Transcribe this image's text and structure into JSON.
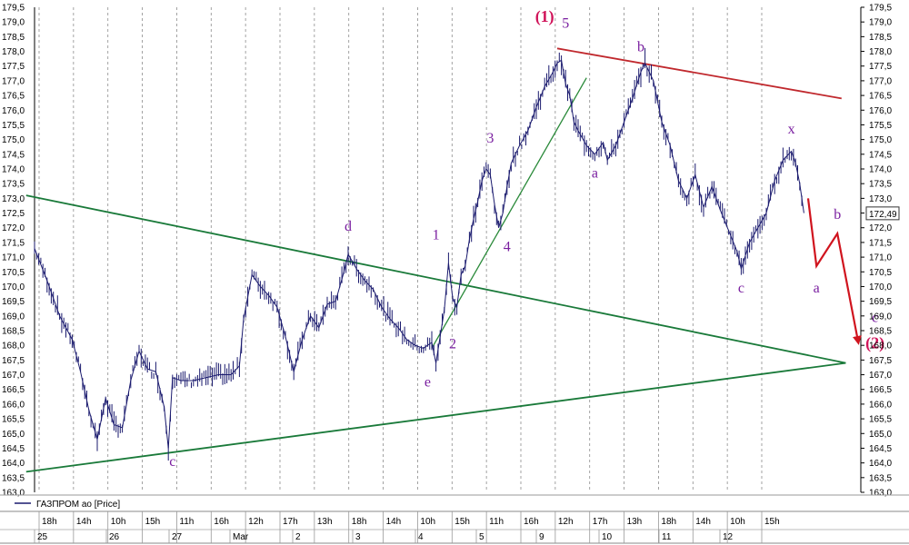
{
  "chart_data": {
    "type": "line",
    "series_name": "ГАЗПРОМ ао [Price]",
    "last_price_label": "172,49",
    "y_range": [
      163.0,
      179.5
    ],
    "y_ticks": [
      "163,0",
      "163,5",
      "164,0",
      "164,5",
      "165,0",
      "165,5",
      "166,0",
      "166,5",
      "167,0",
      "167,5",
      "168,0",
      "168,5",
      "169,0",
      "169,5",
      "170,0",
      "170,5",
      "171,0",
      "171,5",
      "172,0",
      "172,5",
      "173,0",
      "173,5",
      "174,0",
      "174,5",
      "175,0",
      "175,5",
      "176,0",
      "176,5",
      "177,0",
      "177,5",
      "178,0",
      "178,5",
      "179,0",
      "179,5"
    ],
    "x_hours": [
      "18h",
      "14h",
      "10h",
      "15h",
      "11h",
      "16h",
      "12h",
      "17h",
      "13h",
      "18h",
      "14h",
      "10h",
      "15h",
      "11h",
      "16h",
      "12h",
      "17h",
      "13h",
      "18h",
      "14h",
      "10h",
      "15h"
    ],
    "x_days": [
      "25",
      "26",
      "27",
      "Mar",
      "2",
      "3",
      "4",
      "5",
      "9",
      "10",
      "11",
      "12"
    ],
    "price_path": [
      [
        0,
        171.3
      ],
      [
        6,
        170.2
      ],
      [
        12,
        169.0
      ],
      [
        18,
        168.2
      ],
      [
        22,
        167.1
      ],
      [
        26,
        165.8
      ],
      [
        30,
        164.8
      ],
      [
        34,
        166.2
      ],
      [
        38,
        165.3
      ],
      [
        42,
        165.2
      ],
      [
        46,
        166.8
      ],
      [
        50,
        167.8
      ],
      [
        54,
        167.2
      ],
      [
        58,
        167.1
      ],
      [
        62,
        165.9
      ],
      [
        64,
        164.5
      ],
      [
        66,
        166.9
      ],
      [
        70,
        166.8
      ],
      [
        76,
        166.8
      ],
      [
        82,
        166.9
      ],
      [
        88,
        167.0
      ],
      [
        94,
        167.0
      ],
      [
        98,
        167.3
      ],
      [
        100,
        168.9
      ],
      [
        104,
        170.4
      ],
      [
        108,
        170.0
      ],
      [
        112,
        169.7
      ],
      [
        116,
        169.3
      ],
      [
        120,
        168.3
      ],
      [
        124,
        167.1
      ],
      [
        128,
        168.2
      ],
      [
        132,
        169.0
      ],
      [
        136,
        168.6
      ],
      [
        140,
        169.4
      ],
      [
        144,
        169.5
      ],
      [
        148,
        170.5
      ],
      [
        150,
        171.1
      ],
      [
        154,
        170.6
      ],
      [
        158,
        170.2
      ],
      [
        162,
        169.9
      ],
      [
        166,
        169.3
      ],
      [
        170,
        168.9
      ],
      [
        174,
        168.6
      ],
      [
        178,
        168.2
      ],
      [
        182,
        168.0
      ],
      [
        186,
        167.9
      ],
      [
        190,
        168.1
      ],
      [
        192,
        167.4
      ],
      [
        194,
        168.3
      ],
      [
        196,
        169.2
      ],
      [
        198,
        170.8
      ],
      [
        200,
        169.6
      ],
      [
        202,
        169.3
      ],
      [
        204,
        170.4
      ],
      [
        206,
        170.7
      ],
      [
        208,
        171.6
      ],
      [
        210,
        172.3
      ],
      [
        212,
        172.9
      ],
      [
        214,
        173.6
      ],
      [
        216,
        174.0
      ],
      [
        218,
        173.8
      ],
      [
        220,
        172.8
      ],
      [
        222,
        172.0
      ],
      [
        224,
        172.5
      ],
      [
        226,
        173.4
      ],
      [
        228,
        174.2
      ],
      [
        232,
        174.8
      ],
      [
        236,
        175.3
      ],
      [
        240,
        176.1
      ],
      [
        244,
        176.8
      ],
      [
        248,
        177.3
      ],
      [
        250,
        177.6
      ],
      [
        252,
        177.7
      ],
      [
        254,
        176.9
      ],
      [
        256,
        176.5
      ],
      [
        258,
        175.6
      ],
      [
        260,
        175.3
      ],
      [
        264,
        174.8
      ],
      [
        268,
        174.5
      ],
      [
        272,
        174.9
      ],
      [
        274,
        174.3
      ],
      [
        278,
        174.8
      ],
      [
        282,
        175.6
      ],
      [
        286,
        176.4
      ],
      [
        290,
        177.3
      ],
      [
        292,
        177.6
      ],
      [
        296,
        177.0
      ],
      [
        300,
        175.6
      ],
      [
        304,
        174.8
      ],
      [
        308,
        173.6
      ],
      [
        312,
        173.0
      ],
      [
        316,
        173.8
      ],
      [
        320,
        172.7
      ],
      [
        324,
        173.4
      ],
      [
        328,
        172.6
      ],
      [
        332,
        171.9
      ],
      [
        336,
        171.2
      ],
      [
        338,
        170.6
      ],
      [
        342,
        171.5
      ],
      [
        346,
        172.0
      ],
      [
        350,
        172.5
      ],
      [
        354,
        173.6
      ],
      [
        358,
        174.3
      ],
      [
        362,
        174.6
      ],
      [
        364,
        174.2
      ],
      [
        366,
        173.5
      ],
      [
        368,
        172.5
      ]
    ],
    "forecast_path": [
      [
        370,
        173.0
      ],
      [
        374,
        170.7
      ],
      [
        384,
        171.8
      ],
      [
        394,
        168.1
      ]
    ],
    "trendlines": [
      {
        "name": "triangle-upper",
        "color": "#1a7a3a",
        "from": [
          -4,
          173.1
        ],
        "to": [
          388,
          167.4
        ]
      },
      {
        "name": "triangle-lower",
        "color": "#1a7a3a",
        "from": [
          -4,
          163.7
        ],
        "to": [
          388,
          167.4
        ]
      },
      {
        "name": "channel-upper",
        "color": "#c0282d",
        "from": [
          250,
          178.1
        ],
        "to": [
          386,
          176.4
        ]
      },
      {
        "name": "wave-support",
        "color": "#2a8a3a",
        "from": [
          190,
          167.9
        ],
        "to": [
          264,
          177.1
        ]
      }
    ],
    "wave_labels": [
      {
        "text": "c",
        "x": 66,
        "y": 163.9,
        "color": "purple"
      },
      {
        "text": "d",
        "x": 150,
        "y": 171.9,
        "color": "purple"
      },
      {
        "text": "e",
        "x": 188,
        "y": 166.6,
        "color": "purple"
      },
      {
        "text": "1",
        "x": 192,
        "y": 171.6,
        "color": "purple"
      },
      {
        "text": "2",
        "x": 200,
        "y": 167.9,
        "color": "purple"
      },
      {
        "text": "3",
        "x": 218,
        "y": 174.9,
        "color": "purple"
      },
      {
        "text": "4",
        "x": 226,
        "y": 171.2,
        "color": "purple"
      },
      {
        "text": "(1)",
        "x": 244,
        "y": 179.0,
        "color": "red"
      },
      {
        "text": "5",
        "x": 254,
        "y": 178.8,
        "color": "purple"
      },
      {
        "text": "a",
        "x": 268,
        "y": 173.7,
        "color": "purple"
      },
      {
        "text": "b",
        "x": 290,
        "y": 178.0,
        "color": "purple"
      },
      {
        "text": "c",
        "x": 338,
        "y": 169.8,
        "color": "purple"
      },
      {
        "text": "x",
        "x": 362,
        "y": 175.2,
        "color": "purple"
      },
      {
        "text": "a",
        "x": 374,
        "y": 169.8,
        "color": "purple"
      },
      {
        "text": "b",
        "x": 384,
        "y": 172.3,
        "color": "purple"
      },
      {
        "text": "c",
        "x": 402,
        "y": 168.8,
        "color": "purple"
      },
      {
        "text": "(2)",
        "x": 402,
        "y": 167.9,
        "color": "red"
      }
    ],
    "colors": {
      "price": "#1a1a6e",
      "grid": "#8c8c8c",
      "label_purple": "#7a1fa0",
      "label_red": "#d0145a",
      "forecast": "#d0141e"
    }
  }
}
